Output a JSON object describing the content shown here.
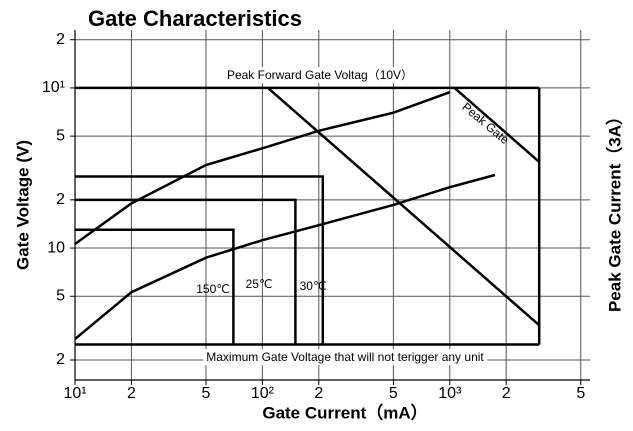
{
  "chart_data": {
    "type": "line",
    "title": "Gate Characteristics",
    "x_label": "Gate Current（mA）",
    "y_label": "Gate Voltage (V)",
    "y2_label": "Peak Gate Current（3A）",
    "log_x": true,
    "log_y": true,
    "grid": true,
    "xlim": [
      10,
      5600
    ],
    "ylim": [
      0.15,
      23
    ],
    "xticks": [
      {
        "value": 10,
        "label": "10¹"
      },
      {
        "value": 20,
        "label": "2"
      },
      {
        "value": 50,
        "label": "5"
      },
      {
        "value": 100,
        "label": "10²"
      },
      {
        "value": 200,
        "label": "2"
      },
      {
        "value": 500,
        "label": "5"
      },
      {
        "value": 1000,
        "label": "10³"
      },
      {
        "value": 2000,
        "label": "2"
      },
      {
        "value": 5000,
        "label": "5"
      }
    ],
    "yticks": [
      {
        "value": 20,
        "label": "2"
      },
      {
        "value": 10,
        "label": "10¹"
      },
      5,
      2,
      {
        "value": 1,
        "label": "10"
      },
      {
        "value": 0.5,
        "label": "5"
      },
      {
        "value": 0.2,
        "label": "2"
      }
    ],
    "series": [
      {
        "name": "Peak Forward Gate Voltag（10V）",
        "color": "#000000",
        "x": [
          10,
          3000
        ],
        "values": [
          10,
          10
        ]
      },
      {
        "color": "#000000",
        "x": [
          3000,
          3000
        ],
        "values": [
          10,
          0.25
        ]
      },
      {
        "name": "Maximum Gate Voltage that will not terigger any unit",
        "color": "#000000",
        "x": [
          10,
          3000
        ],
        "values": [
          0.25,
          0.25
        ]
      },
      {
        "color": "#000000",
        "x": [
          107,
          3000
        ],
        "values": [
          10,
          0.33
        ]
      },
      {
        "name": "Peak Gate",
        "color": "#000000",
        "x": [
          1060,
          3000
        ],
        "values": [
          10,
          3.45
        ]
      },
      {
        "color": "#000000",
        "x": [
          10,
          20,
          50,
          100,
          200,
          500,
          1000
        ],
        "values": [
          1.06,
          1.9,
          3.3,
          4.2,
          5.4,
          7.0,
          9.4
        ]
      },
      {
        "color": "#000000",
        "x": [
          10,
          20,
          50,
          100,
          200,
          500,
          1000,
          1740
        ],
        "values": [
          0.27,
          0.53,
          0.87,
          1.12,
          1.39,
          1.86,
          2.4,
          2.86
        ]
      },
      {
        "name": "150℃",
        "color": "#000000",
        "x": [
          10,
          70,
          70
        ],
        "values": [
          1.3,
          1.3,
          0.25
        ]
      },
      {
        "name": "25℃",
        "color": "#000000",
        "x": [
          10,
          150,
          150
        ],
        "values": [
          2,
          2,
          0.25
        ]
      },
      {
        "name": "30℃",
        "color": "#000000",
        "x": [
          10,
          210,
          210
        ],
        "values": [
          2.8,
          2.8,
          0.25
        ]
      }
    ]
  }
}
